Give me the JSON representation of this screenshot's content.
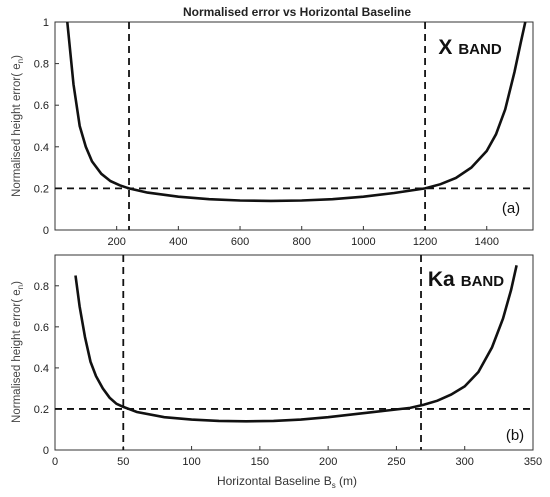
{
  "chart_data": [
    {
      "type": "line",
      "title": "Normalised error vs Horizontal Baseline",
      "xlabel": "",
      "ylabel_main": "Normalised height error( e",
      "ylabel_sub": "n",
      "ylabel_close": ")",
      "band_main": "X",
      "band_sub": "BAND",
      "panel_tag": "(a)",
      "xlim": [
        0,
        1550
      ],
      "ylim": [
        0,
        1
      ],
      "x_ticks": [
        200,
        400,
        600,
        800,
        1000,
        1200,
        1400
      ],
      "y_ticks": [
        0,
        0.2,
        0.4,
        0.6,
        0.8,
        1
      ],
      "y_tick_labels": [
        "0",
        "0.2",
        "0.4",
        "0.6",
        "0.8",
        "1"
      ],
      "grid": false,
      "series": [
        {
          "x": [
            40,
            60,
            80,
            100,
            120,
            150,
            180,
            210,
            240,
            300,
            400,
            500,
            600,
            700,
            800,
            900,
            1000,
            1100,
            1200,
            1250,
            1300,
            1350,
            1400,
            1430,
            1460,
            1490,
            1510,
            1525
          ],
          "y": [
            1.0,
            0.7,
            0.5,
            0.4,
            0.33,
            0.27,
            0.235,
            0.215,
            0.2,
            0.18,
            0.16,
            0.148,
            0.142,
            0.14,
            0.142,
            0.148,
            0.16,
            0.178,
            0.2,
            0.22,
            0.25,
            0.3,
            0.38,
            0.46,
            0.58,
            0.76,
            0.9,
            1.0
          ]
        }
      ],
      "threshold_y": 0.2,
      "marker_x": [
        240,
        1200
      ]
    },
    {
      "type": "line",
      "title": "",
      "xlabel_main": "Horizontal Baseline B",
      "xlabel_sub": "s",
      "xlabel_close": " (m)",
      "ylabel_main": "Normalised height error( e",
      "ylabel_sub": "n",
      "ylabel_close": ")",
      "band_main": "Ka",
      "band_sub": "BAND",
      "panel_tag": "(b)",
      "xlim": [
        0,
        350
      ],
      "ylim": [
        0,
        0.95
      ],
      "x_ticks": [
        0,
        50,
        100,
        150,
        200,
        250,
        300,
        350
      ],
      "y_ticks": [
        0,
        0.2,
        0.4,
        0.6,
        0.8
      ],
      "y_tick_labels": [
        "0",
        "0.2",
        "0.4",
        "0.6",
        "0.8"
      ],
      "grid": false,
      "series": [
        {
          "x": [
            15,
            18,
            22,
            26,
            30,
            35,
            40,
            45,
            50,
            60,
            80,
            100,
            120,
            140,
            160,
            180,
            200,
            220,
            240,
            260,
            270,
            280,
            290,
            300,
            310,
            320,
            328,
            334,
            338
          ],
          "y": [
            0.85,
            0.7,
            0.55,
            0.43,
            0.36,
            0.3,
            0.255,
            0.225,
            0.21,
            0.185,
            0.16,
            0.148,
            0.142,
            0.14,
            0.142,
            0.148,
            0.16,
            0.175,
            0.19,
            0.205,
            0.22,
            0.24,
            0.27,
            0.31,
            0.38,
            0.5,
            0.64,
            0.78,
            0.9
          ]
        }
      ],
      "threshold_y": 0.2,
      "marker_x": [
        50,
        268
      ]
    }
  ]
}
